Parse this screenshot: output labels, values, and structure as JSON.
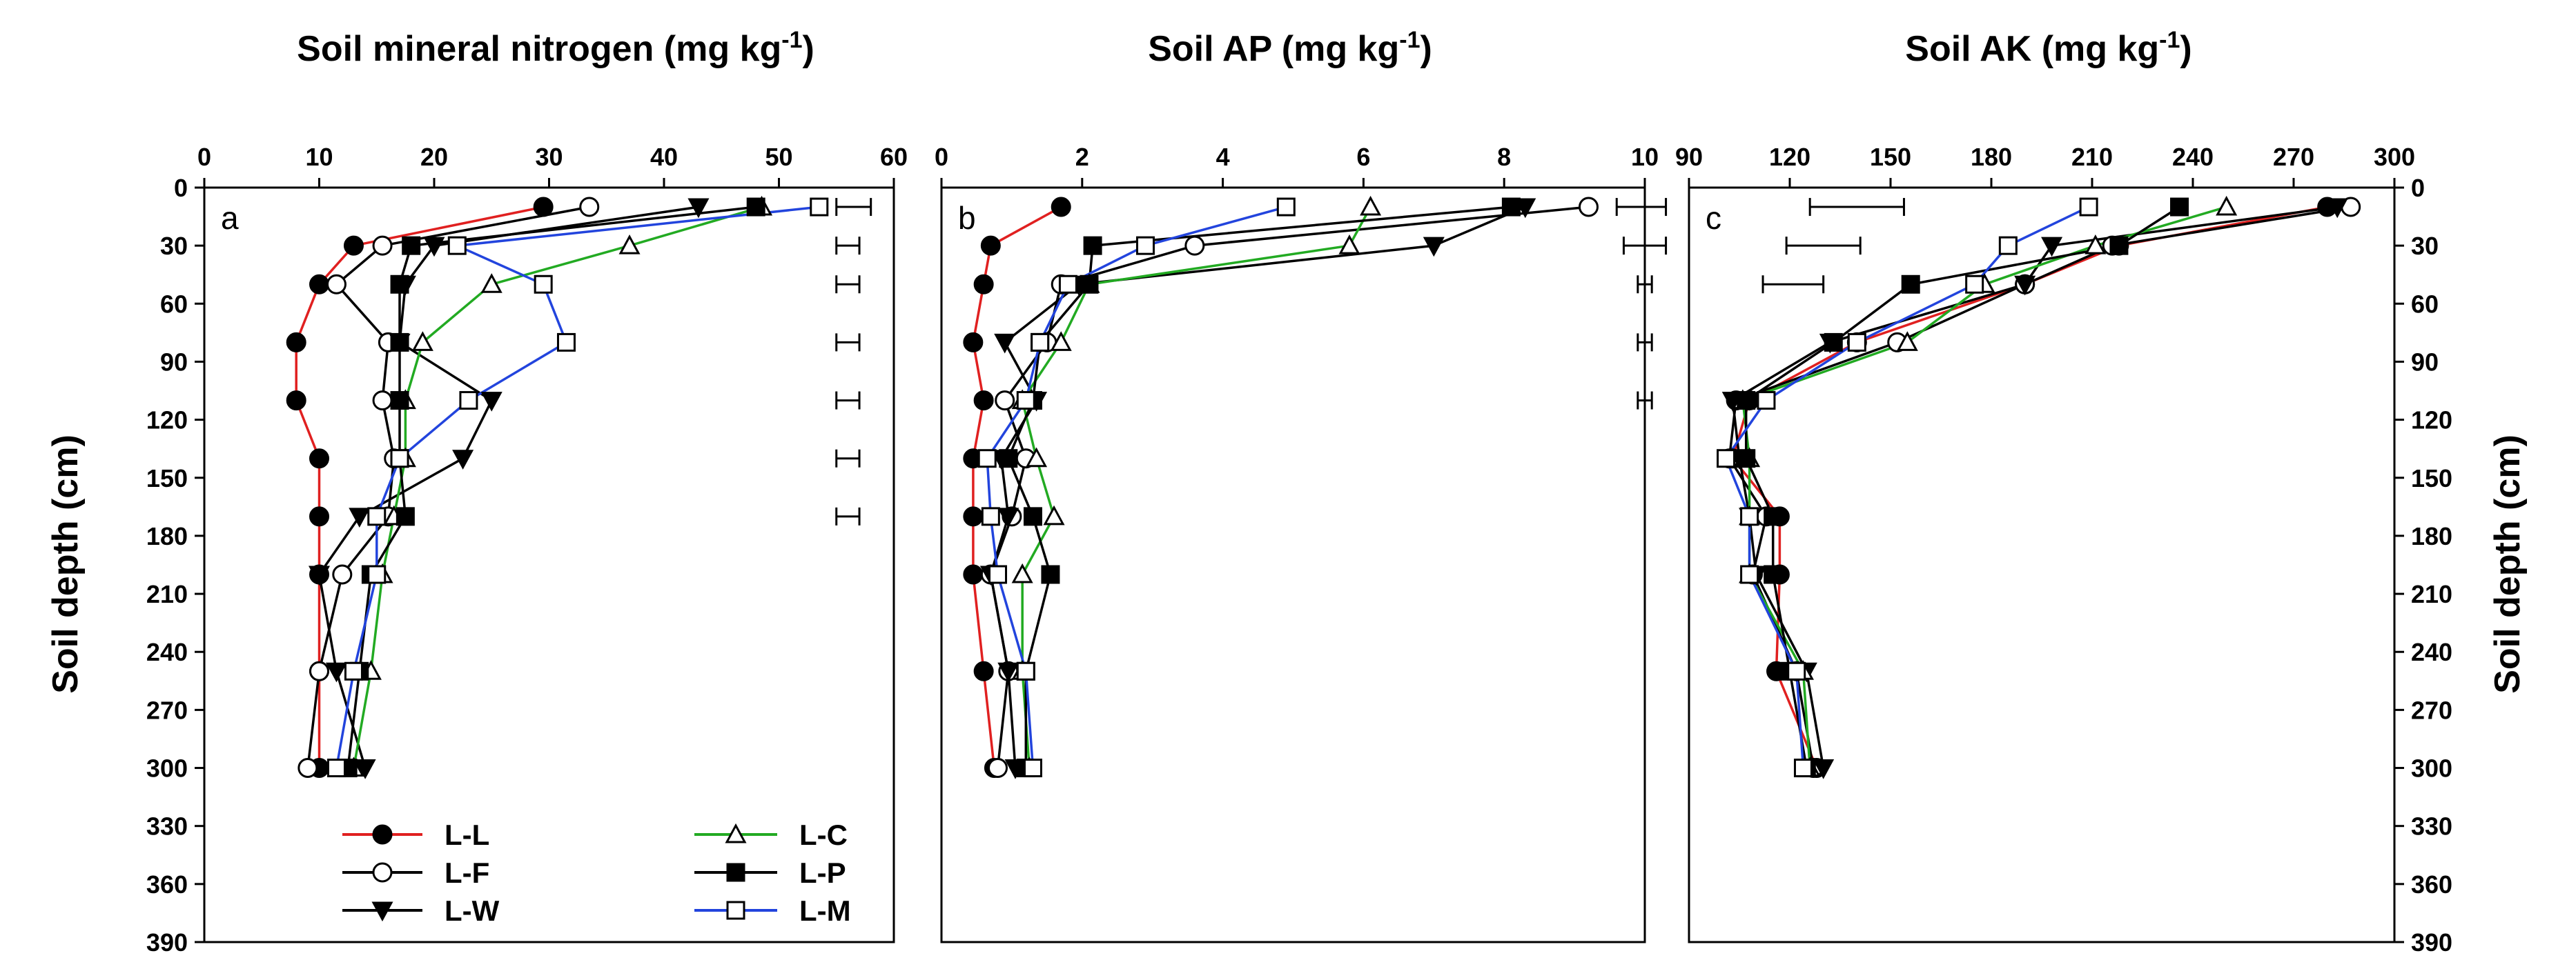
{
  "chart_data": [
    {
      "panel": "a",
      "type": "line",
      "title": "Soil mineral nitrogen (mg kg",
      "title_sup": "-1",
      "title_close": ")",
      "xlabel_position": "top",
      "xlim": [
        0,
        60
      ],
      "xticks": [
        0,
        10,
        20,
        30,
        40,
        50,
        60
      ],
      "ylim": [
        0,
        390
      ],
      "yinverted": true,
      "ylabel": "Soil depth (cm)",
      "yticks": [
        0,
        30,
        60,
        90,
        120,
        150,
        180,
        210,
        240,
        270,
        300,
        330,
        360,
        390
      ],
      "series": [
        {
          "name": "L-L",
          "color": "#e02020",
          "marker": "filled-circle",
          "x": [
            29.5,
            13,
            10,
            8,
            8,
            10,
            10,
            10,
            10,
            10
          ],
          "y": [
            10,
            30,
            50,
            80,
            110,
            140,
            170,
            200,
            250,
            300
          ]
        },
        {
          "name": "L-F",
          "color": "#000000",
          "marker": "open-circle",
          "x": [
            33.5,
            15.5,
            11.5,
            16,
            15.5,
            16.5,
            16,
            12,
            10,
            9
          ],
          "y": [
            10,
            30,
            50,
            80,
            110,
            140,
            170,
            200,
            250,
            300
          ]
        },
        {
          "name": "L-W",
          "color": "#000000",
          "marker": "filled-triangle-down",
          "x": [
            43,
            20,
            17.5,
            17,
            25,
            22.5,
            13.5,
            10,
            11.5,
            14
          ],
          "y": [
            10,
            30,
            50,
            80,
            110,
            140,
            170,
            200,
            250,
            300
          ]
        },
        {
          "name": "L-C",
          "color": "#22aa22",
          "marker": "open-triangle-up",
          "x": [
            48.5,
            37,
            25,
            19,
            17.5,
            17.5,
            16.5,
            15.5,
            14.5,
            13
          ],
          "y": [
            10,
            30,
            50,
            80,
            110,
            140,
            170,
            200,
            250,
            300
          ]
        },
        {
          "name": "L-P",
          "color": "#000000",
          "marker": "filled-square",
          "x": [
            48,
            18,
            17,
            17,
            17,
            17,
            17.5,
            14.5,
            13.5,
            12.5
          ],
          "y": [
            10,
            30,
            50,
            80,
            110,
            140,
            170,
            200,
            250,
            300
          ]
        },
        {
          "name": "L-M",
          "color": "#2244dd",
          "marker": "open-square",
          "x": [
            53.5,
            22,
            29.5,
            31.5,
            23,
            17,
            15,
            15,
            13,
            11.5
          ],
          "y": [
            10,
            30,
            50,
            80,
            110,
            140,
            170,
            200,
            250,
            300
          ]
        }
      ],
      "error_bars": [
        {
          "y": 10,
          "xmin": 55,
          "xmax": 58
        },
        {
          "y": 30,
          "xmin": 55,
          "xmax": 57
        },
        {
          "y": 50,
          "xmin": 55,
          "xmax": 57
        },
        {
          "y": 80,
          "xmin": 55,
          "xmax": 57
        },
        {
          "y": 110,
          "xmin": 55,
          "xmax": 57
        },
        {
          "y": 140,
          "xmin": 55,
          "xmax": 57
        },
        {
          "y": 170,
          "xmin": 55,
          "xmax": 57
        }
      ]
    },
    {
      "panel": "b",
      "type": "line",
      "title": "Soil AP (mg kg",
      "title_sup": "-1",
      "title_close": ")",
      "xlabel_position": "top",
      "xlim": [
        0,
        10
      ],
      "xticks": [
        0,
        2,
        4,
        6,
        8,
        10
      ],
      "ylim": [
        0,
        390
      ],
      "yinverted": true,
      "yticks": [
        0,
        30,
        60,
        90,
        120,
        150,
        180,
        210,
        240,
        270,
        300,
        330,
        360,
        390
      ],
      "series": [
        {
          "name": "L-L",
          "color": "#e02020",
          "marker": "filled-circle",
          "x": [
            1.7,
            0.7,
            0.6,
            0.45,
            0.6,
            0.45,
            0.45,
            0.45,
            0.6,
            0.75
          ],
          "y": [
            10,
            30,
            50,
            80,
            110,
            140,
            170,
            200,
            250,
            300
          ]
        },
        {
          "name": "L-F",
          "color": "#000000",
          "marker": "open-circle",
          "x": [
            9.2,
            3.6,
            1.7,
            1.5,
            0.9,
            1.2,
            1.0,
            0.7,
            0.95,
            0.8
          ],
          "y": [
            10,
            30,
            50,
            80,
            110,
            140,
            170,
            200,
            250,
            300
          ]
        },
        {
          "name": "L-W",
          "color": "#000000",
          "marker": "filled-triangle-down",
          "x": [
            8.3,
            7.0,
            1.95,
            0.9,
            1.35,
            0.85,
            0.95,
            0.7,
            0.95,
            1.05
          ],
          "y": [
            10,
            30,
            50,
            80,
            110,
            140,
            170,
            200,
            250,
            300
          ]
        },
        {
          "name": "L-C",
          "color": "#22aa22",
          "marker": "open-triangle-up",
          "x": [
            6.1,
            5.8,
            2.1,
            1.7,
            1.15,
            1.35,
            1.6,
            1.15,
            1.15,
            1.25
          ],
          "y": [
            10,
            30,
            50,
            80,
            110,
            140,
            170,
            200,
            250,
            300
          ]
        },
        {
          "name": "L-P",
          "color": "#000000",
          "marker": "filled-square",
          "x": [
            8.1,
            2.15,
            2.1,
            1.4,
            1.3,
            0.95,
            1.3,
            1.55,
            1.2,
            1.2
          ],
          "y": [
            10,
            30,
            50,
            80,
            110,
            140,
            170,
            200,
            250,
            300
          ]
        },
        {
          "name": "L-M",
          "color": "#2244dd",
          "marker": "open-square",
          "x": [
            4.9,
            2.9,
            1.8,
            1.4,
            1.2,
            0.65,
            0.7,
            0.8,
            1.2,
            1.3
          ],
          "y": [
            10,
            30,
            50,
            80,
            110,
            140,
            170,
            200,
            250,
            300
          ]
        }
      ],
      "error_bars": [
        {
          "y": 10,
          "xmin": 9.6,
          "xmax": 10.3
        },
        {
          "y": 30,
          "xmin": 9.7,
          "xmax": 10.3
        },
        {
          "y": 50,
          "xmin": 9.9,
          "xmax": 10.1
        },
        {
          "y": 80,
          "xmin": 9.9,
          "xmax": 10.1
        },
        {
          "y": 110,
          "xmin": 9.9,
          "xmax": 10.1
        }
      ]
    },
    {
      "panel": "c",
      "type": "line",
      "title": "Soil AK (mg kg",
      "title_sup": "-1",
      "title_close": ")",
      "xlabel_position": "top",
      "xlim": [
        90,
        300
      ],
      "xticks": [
        90,
        120,
        150,
        180,
        210,
        240,
        270,
        300
      ],
      "ylim": [
        0,
        390
      ],
      "yinverted": true,
      "ylabel": "Soil depth (cm)",
      "ylabel_side": "right",
      "yticks": [
        0,
        30,
        60,
        90,
        120,
        150,
        180,
        210,
        240,
        270,
        300,
        330,
        360,
        390
      ],
      "series": [
        {
          "name": "L-L",
          "color": "#e02020",
          "marker": "filled-circle",
          "x": [
            280,
            218,
            190,
            140,
            108,
            103,
            117,
            117,
            116,
            128
          ],
          "y": [
            10,
            30,
            50,
            80,
            110,
            140,
            170,
            200,
            250,
            300
          ]
        },
        {
          "name": "L-F",
          "color": "#000000",
          "marker": "open-circle",
          "x": [
            287,
            216,
            190,
            152,
            104,
            102,
            113,
            109,
            122,
            127
          ],
          "y": [
            10,
            30,
            50,
            80,
            110,
            140,
            170,
            200,
            250,
            300
          ]
        },
        {
          "name": "L-W",
          "color": "#000000",
          "marker": "filled-triangle-down",
          "x": [
            283,
            198,
            190,
            132,
            103,
            105,
            108,
            110,
            125,
            130
          ],
          "y": [
            10,
            30,
            50,
            80,
            110,
            140,
            170,
            200,
            250,
            300
          ]
        },
        {
          "name": "L-C",
          "color": "#22aa22",
          "marker": "open-triangle-up",
          "x": [
            250,
            211,
            178,
            155,
            106,
            108,
            108,
            108,
            124,
            126
          ],
          "y": [
            10,
            30,
            50,
            80,
            110,
            140,
            170,
            200,
            250,
            300
          ]
        },
        {
          "name": "L-P",
          "color": "#000000",
          "marker": "filled-square",
          "x": [
            236,
            218,
            156,
            133,
            107,
            107,
            115,
            115,
            120,
            125
          ],
          "y": [
            10,
            30,
            50,
            80,
            110,
            140,
            170,
            200,
            250,
            300
          ]
        },
        {
          "name": "L-M",
          "color": "#2244dd",
          "marker": "open-square",
          "x": [
            209,
            185,
            175,
            140,
            113,
            101,
            108,
            108,
            122,
            124
          ],
          "y": [
            10,
            30,
            50,
            80,
            110,
            140,
            170,
            200,
            250,
            300
          ]
        }
      ],
      "error_bars": [
        {
          "y": 10,
          "xmin": 126,
          "xmax": 154
        },
        {
          "y": 30,
          "xmin": 119,
          "xmax": 141
        },
        {
          "y": 50,
          "xmin": 112,
          "xmax": 130
        }
      ]
    }
  ],
  "legend": {
    "placement": "bottom-left of panel a",
    "entries": [
      "L-L",
      "L-F",
      "L-W",
      "L-C",
      "L-P",
      "L-M"
    ]
  }
}
